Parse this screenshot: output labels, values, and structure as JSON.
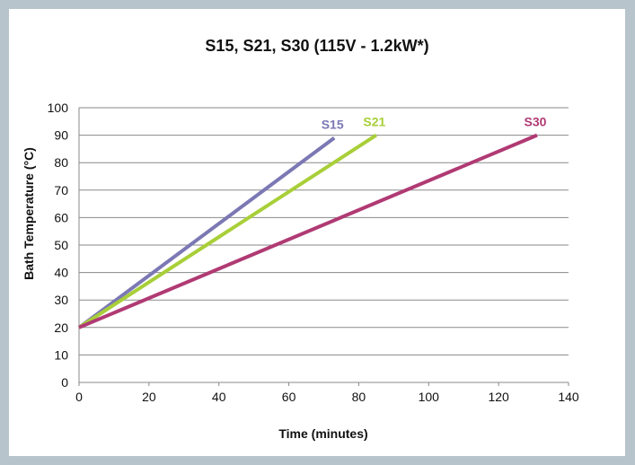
{
  "chart_data": {
    "type": "line",
    "title": "S15, S21, S30 (115V - 1.2kW*)",
    "xlabel": "Time (minutes)",
    "ylabel": "Bath Temperature (°C)",
    "xlim": [
      0,
      140
    ],
    "ylim": [
      0,
      100
    ],
    "xticks": [
      "0",
      "20",
      "40",
      "60",
      "80",
      "100",
      "120",
      "140"
    ],
    "yticks": [
      "0",
      "10",
      "20",
      "30",
      "40",
      "50",
      "60",
      "70",
      "80",
      "90",
      "100"
    ],
    "grid": "horizontal",
    "series": [
      {
        "name": "S15",
        "color": "#7b78b4",
        "x": [
          0,
          73
        ],
        "y": [
          20,
          89
        ]
      },
      {
        "name": "S21",
        "color": "#a8cf38",
        "x": [
          0,
          85
        ],
        "y": [
          20,
          90
        ]
      },
      {
        "name": "S30",
        "color": "#b03a74",
        "x": [
          0,
          131
        ],
        "y": [
          20,
          90
        ]
      }
    ]
  }
}
